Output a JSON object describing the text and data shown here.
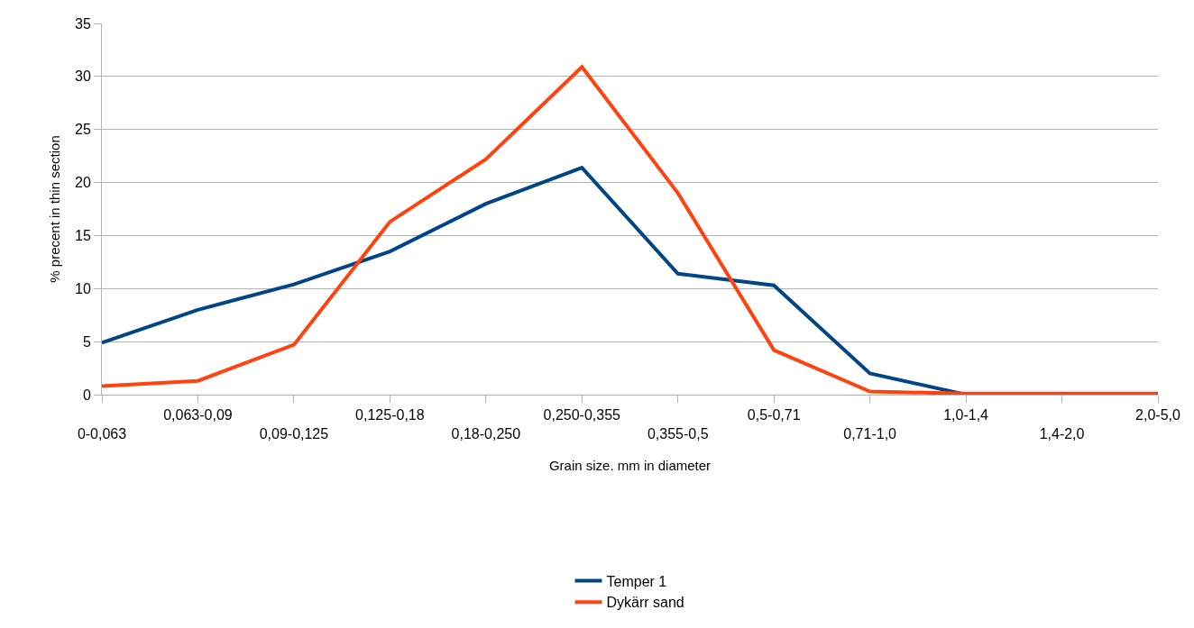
{
  "chart_data": {
    "type": "line",
    "xlabel": "Grain size. mm in diameter",
    "ylabel": "% precent in thin section",
    "categories": [
      "0-0,063",
      "0,063-0,09",
      "0,09-0,125",
      "0,125-0,18",
      "0,18-0,250",
      "0,250-0,355",
      "0,355-0,5",
      "0,5-0,71",
      "0,71-1,0",
      "1,0-1,4",
      "1,4-2,0",
      "2,0-5,0"
    ],
    "series": [
      {
        "name": "Temper 1",
        "color": "#004586",
        "values": [
          4.9,
          8.0,
          10.4,
          13.5,
          18.0,
          21.4,
          11.4,
          10.3,
          2.0,
          0,
          0,
          0
        ]
      },
      {
        "name": "Dykärr sand",
        "color": "#ff420e",
        "values": [
          0.8,
          1.3,
          4.7,
          16.3,
          22.2,
          30.9,
          19.0,
          4.2,
          0.3,
          0.1,
          0.1,
          0.1
        ]
      }
    ],
    "ylim": [
      0,
      35
    ],
    "yticks": [
      0,
      5,
      10,
      15,
      20,
      25,
      30,
      35
    ],
    "grid": "y",
    "legend": "bottom",
    "marker": "none",
    "line_style": "solid"
  }
}
